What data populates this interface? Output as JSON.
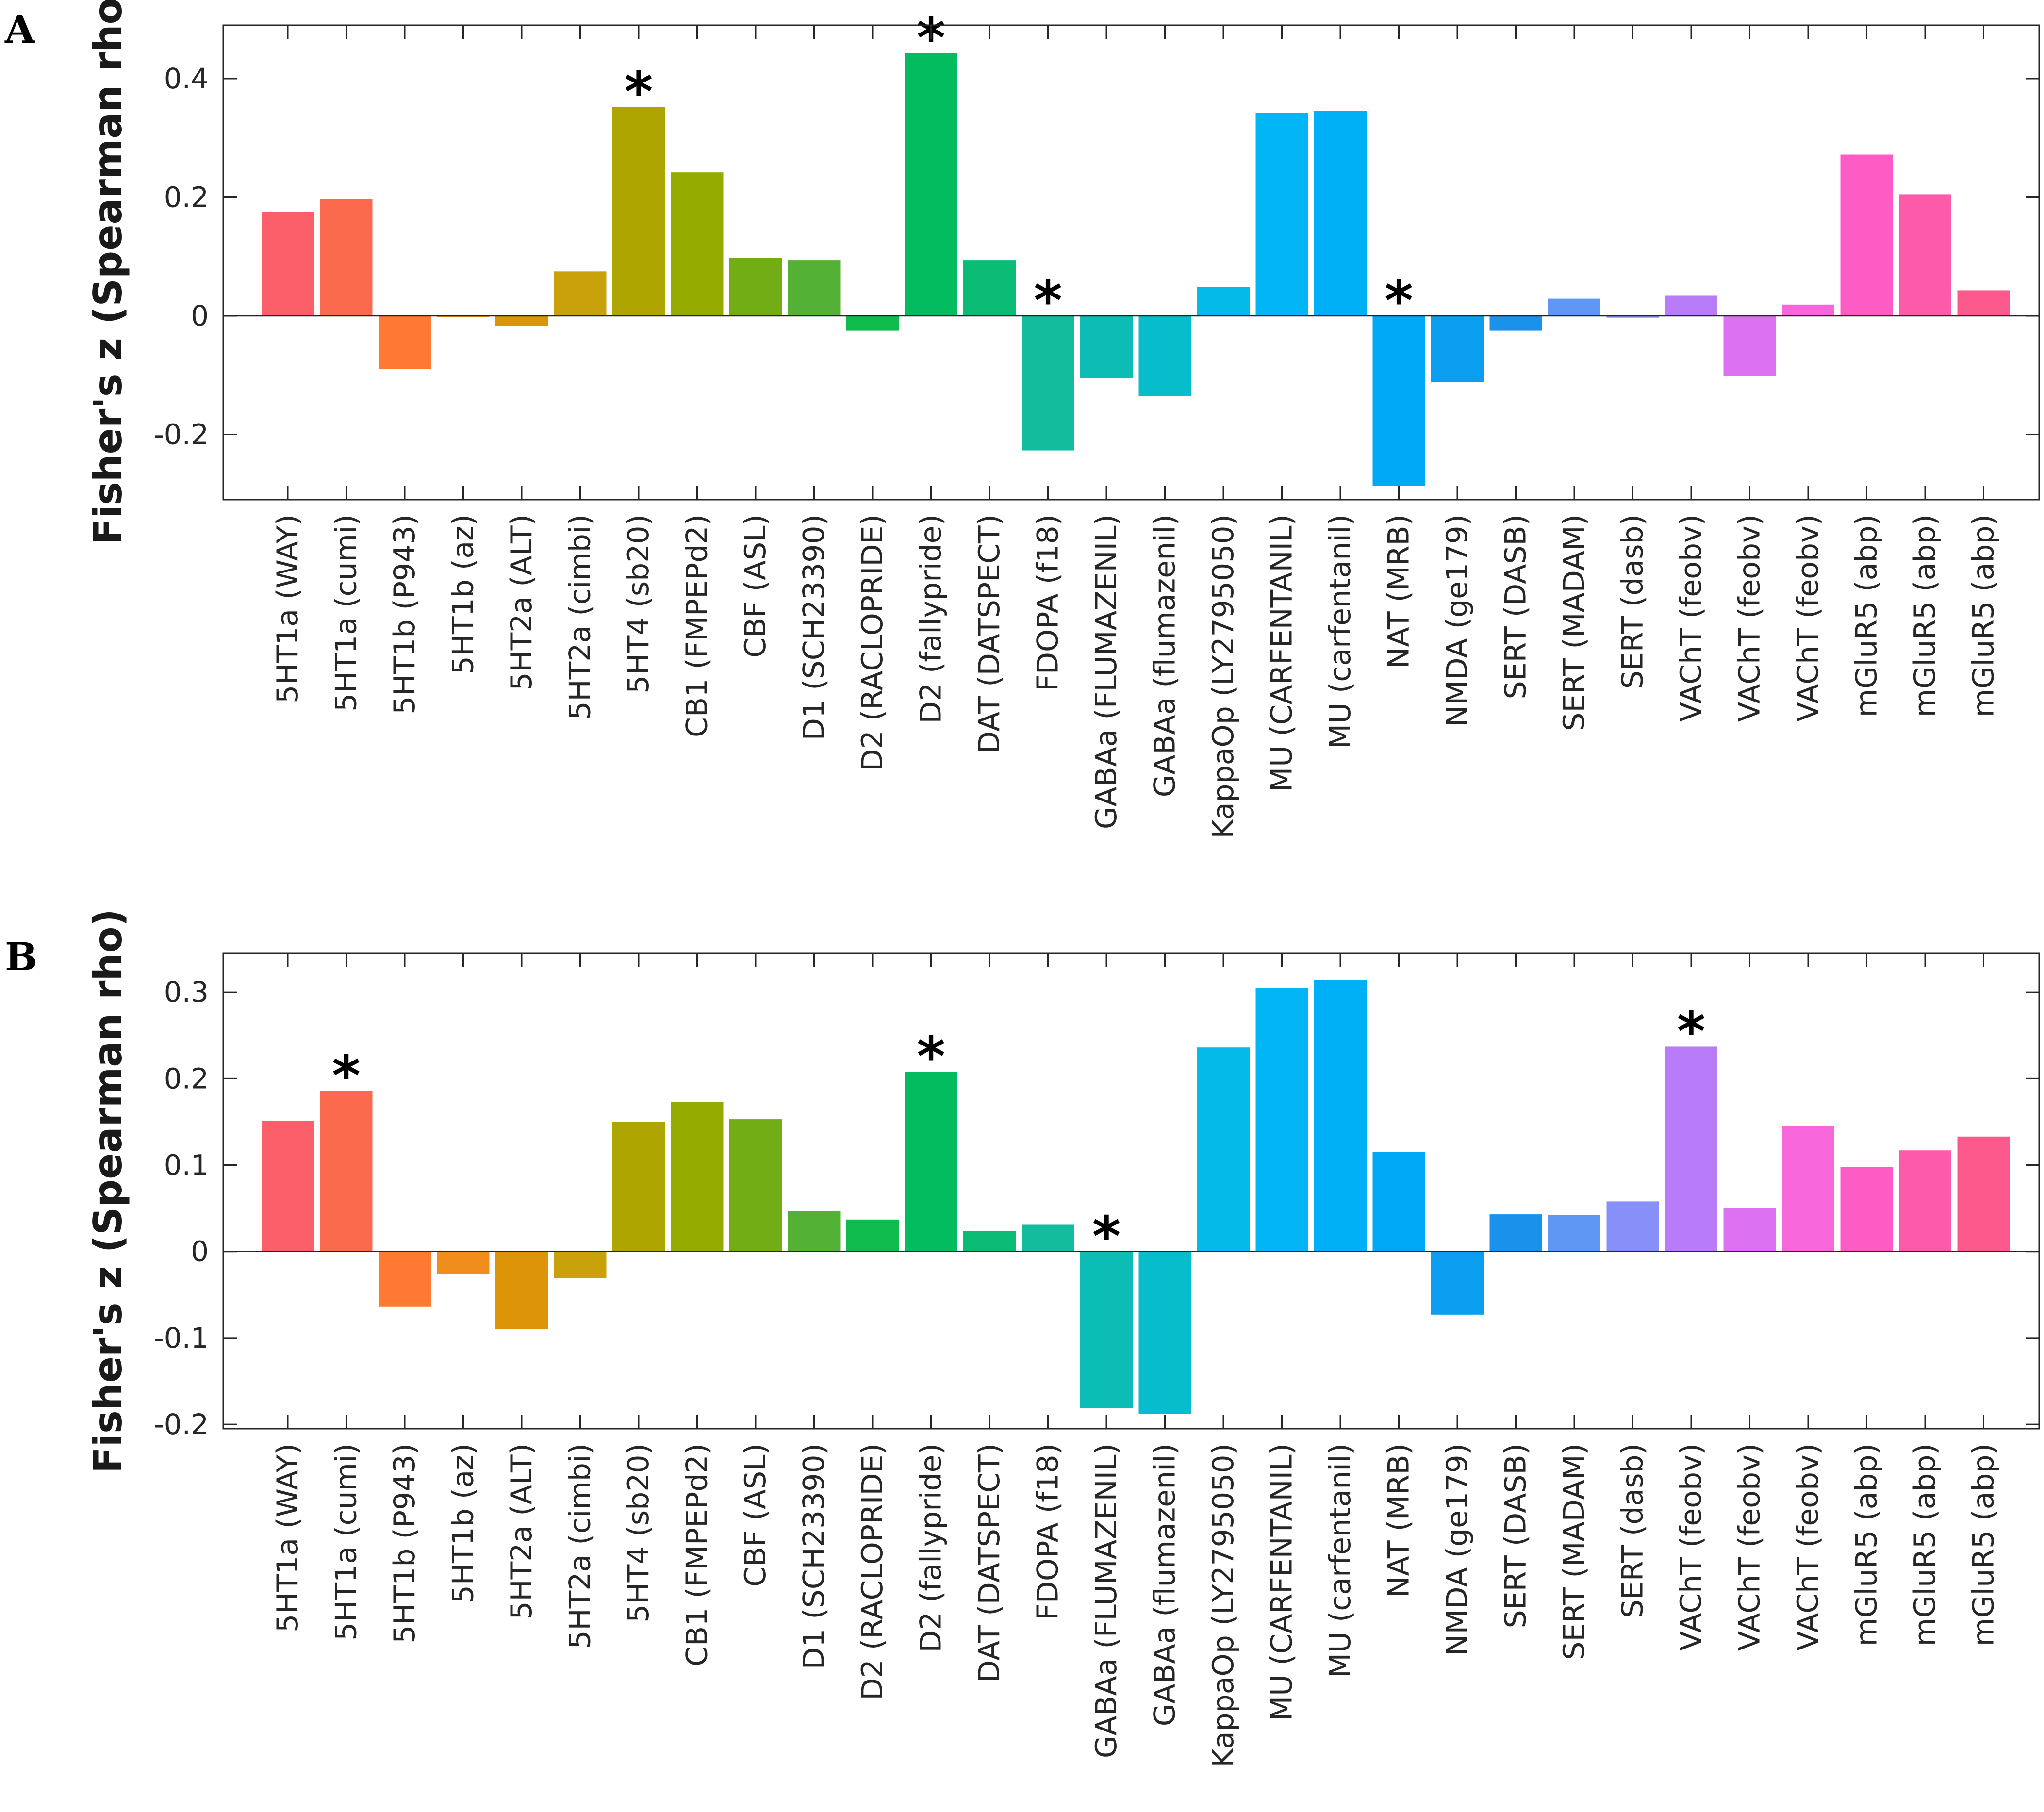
{
  "chart_data": [
    {
      "panel": "A",
      "type": "bar",
      "ylabel": "Fisher's z (Spearman rho)",
      "ylim": [
        -0.31,
        0.49
      ],
      "yticks": [
        -0.2,
        0,
        0.2,
        0.4
      ],
      "ytick_labels": [
        "-0.2",
        "0",
        "0.2",
        "0.4"
      ],
      "categories": [
        "5HT1a (WAY)",
        "5HT1a (cumi)",
        "5HT1b (P943)",
        "5HT1b (az)",
        "5HT2a (ALT)",
        "5HT2a (cimbi)",
        "5HT4 (sb20)",
        "CB1 (FMPEPd2)",
        "CBF (ASL)",
        "D1 (SCH23390)",
        "D2 (RACLOPRIDE)",
        "D2 (fallypride)",
        "DAT (DATSPECT)",
        "FDOPA (f18)",
        "GABAa (FLUMAZENIL)",
        "GABAa (flumazenil)",
        "KappaOp (LY2795050)",
        "MU (CARFENTANIL)",
        "MU (carfentanil)",
        "NAT (MRB)",
        "NMDA (ge179)",
        "SERT (DASB)",
        "SERT (MADAM)",
        "SERT (dasb)",
        "VAChT (feobv)",
        "VAChT (feobv)",
        "VAChT (feobv)",
        "mGluR5 (abp)",
        "mGluR5 (abp)",
        "mGluR5 (abp)"
      ],
      "values": [
        0.175,
        0.197,
        -0.09,
        0.0,
        -0.018,
        0.075,
        0.352,
        0.242,
        0.098,
        0.094,
        -0.025,
        0.443,
        0.094,
        -0.227,
        -0.105,
        -0.135,
        0.049,
        0.342,
        0.346,
        -0.287,
        -0.112,
        -0.025,
        0.029,
        -0.003,
        0.034,
        -0.102,
        0.019,
        0.272,
        0.205,
        0.043
      ],
      "significant": [
        6,
        11,
        13,
        19
      ],
      "star_label": "*",
      "colors": [
        "#fa5f6a",
        "#fc6a4d",
        "#fe7a32",
        "#f18d1c",
        "#dd9409",
        "#c9a10b",
        "#afa500",
        "#95ab00",
        "#72ad16",
        "#53b236",
        "#0ebb4c",
        "#03bc5f",
        "#0bbc77",
        "#13bc9c",
        "#0bbdb4",
        "#07bdcc",
        "#03bae8",
        "#02b6f6",
        "#00b0f7",
        "#00a9f5",
        "#0a9df0",
        "#1a92ec",
        "#5e97f4",
        "#878ff9",
        "#b97cf9",
        "#dc71f2",
        "#f766da",
        "#fe5cc4",
        "#fd5aaa",
        "#fc5a8c"
      ]
    },
    {
      "panel": "B",
      "type": "bar",
      "ylabel": "Fisher's z (Spearman rho)",
      "ylim": [
        -0.205,
        0.345
      ],
      "yticks": [
        -0.2,
        -0.1,
        0,
        0.1,
        0.2,
        0.3
      ],
      "ytick_labels": [
        "-0.2",
        "-0.1",
        "0",
        "0.1",
        "0.2",
        "0.3"
      ],
      "categories": [
        "5HT1a (WAY)",
        "5HT1a (cumi)",
        "5HT1b (P943)",
        "5HT1b (az)",
        "5HT2a (ALT)",
        "5HT2a (cimbi)",
        "5HT4 (sb20)",
        "CB1 (FMPEPd2)",
        "CBF (ASL)",
        "D1 (SCH23390)",
        "D2 (RACLOPRIDE)",
        "D2 (fallypride)",
        "DAT (DATSPECT)",
        "FDOPA (f18)",
        "GABAa (FLUMAZENIL)",
        "GABAa (flumazenil)",
        "KappaOp (LY2795050)",
        "MU (CARFENTANIL)",
        "MU (carfentanil)",
        "NAT (MRB)",
        "NMDA (ge179)",
        "SERT (DASB)",
        "SERT (MADAM)",
        "SERT (dasb)",
        "VAChT (feobv)",
        "VAChT (feobv)",
        "VAChT (feobv)",
        "mGluR5 (abp)",
        "mGluR5 (abp)",
        "mGluR5 (abp)"
      ],
      "values": [
        0.151,
        0.186,
        -0.064,
        -0.026,
        -0.09,
        -0.031,
        0.15,
        0.173,
        0.153,
        0.047,
        0.037,
        0.208,
        0.024,
        0.031,
        -0.181,
        -0.188,
        0.236,
        0.305,
        0.314,
        0.115,
        -0.073,
        0.043,
        0.042,
        0.058,
        0.237,
        0.05,
        0.145,
        0.098,
        0.117,
        0.133
      ],
      "significant": [
        1,
        11,
        14,
        24
      ],
      "star_label": "*",
      "colors": [
        "#fa5f6a",
        "#fc6a4d",
        "#fe7a32",
        "#f18d1c",
        "#dd9409",
        "#c9a10b",
        "#afa500",
        "#95ab00",
        "#72ad16",
        "#53b236",
        "#0ebb4c",
        "#03bc5f",
        "#0bbc77",
        "#13bc9c",
        "#0bbdb4",
        "#07bdcc",
        "#03bae8",
        "#02b6f6",
        "#00b0f7",
        "#00a9f5",
        "#0a9df0",
        "#1a92ec",
        "#5e97f4",
        "#878ff9",
        "#b97cf9",
        "#dc71f2",
        "#f766da",
        "#fe5cc4",
        "#fd5aaa",
        "#fc5a8c"
      ]
    }
  ]
}
